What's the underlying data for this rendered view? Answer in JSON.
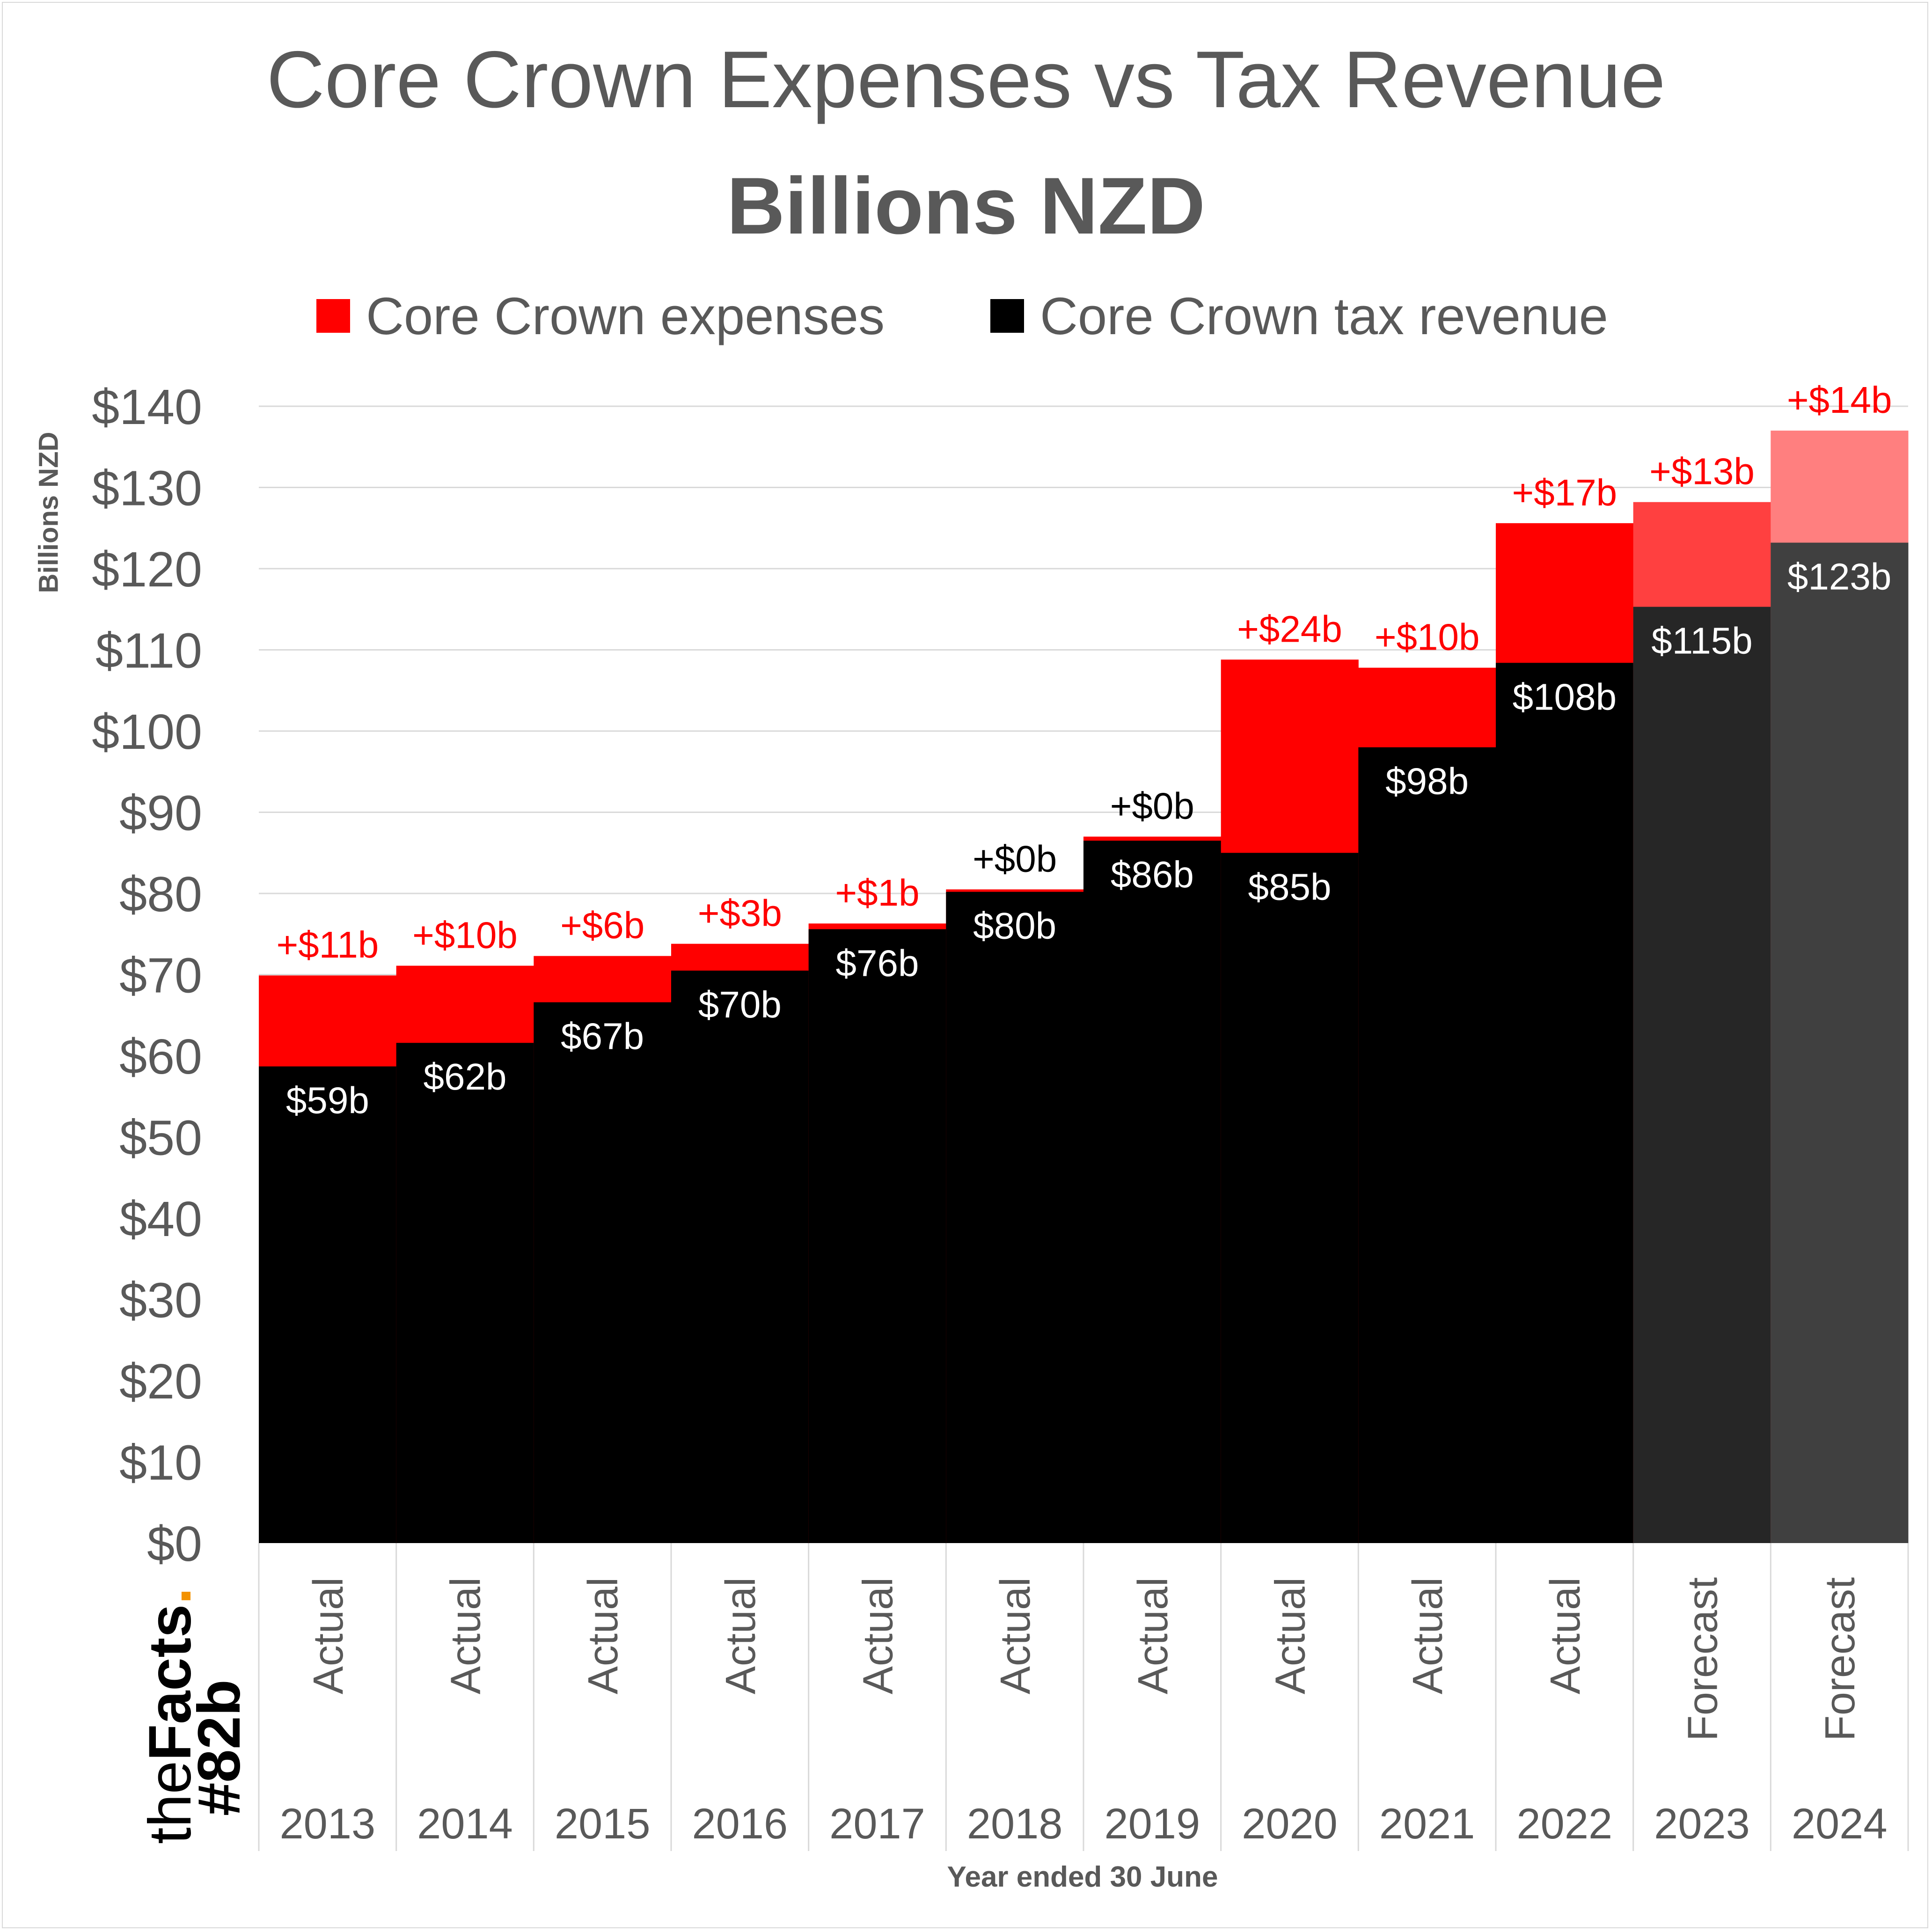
{
  "chart_data": {
    "type": "bar",
    "title": "Core Crown Expenses vs Tax Revenue",
    "subtitle": "Billions NZD",
    "ylabel": "Billions NZD",
    "xlabel": "Year ended 30 June",
    "ylim": [
      0,
      140
    ],
    "y_ticks": [
      0,
      10,
      20,
      30,
      40,
      50,
      60,
      70,
      80,
      90,
      100,
      110,
      120,
      130,
      140
    ],
    "y_tick_labels": [
      "$0",
      "$10",
      "$20",
      "$30",
      "$40",
      "$50",
      "$60",
      "$70",
      "$80",
      "$90",
      "$100",
      "$110",
      "$120",
      "$130",
      "$140"
    ],
    "grid": true,
    "legend_position": "top",
    "categories": [
      "2013",
      "2014",
      "2015",
      "2016",
      "2017",
      "2018",
      "2019",
      "2020",
      "2021",
      "2022",
      "2023",
      "2024"
    ],
    "status": [
      "Actual",
      "Actual",
      "Actual",
      "Actual",
      "Actual",
      "Actual",
      "Actual",
      "Actual",
      "Actual",
      "Actual",
      "Forecast",
      "Forecast"
    ],
    "series": [
      {
        "name": "Core Crown expenses",
        "color": "#ff0000",
        "values": [
          69.9,
          71.1,
          72.3,
          73.8,
          76.3,
          80.5,
          87.0,
          108.8,
          107.8,
          125.6,
          128.2,
          137.0
        ],
        "excess_over_tax_labels": [
          "+$11b",
          "+$10b",
          "+$6b",
          "+$3b",
          "+$1b",
          "+$0b",
          "+$0b",
          "+$24b",
          "+$10b",
          "+$17b",
          "+$13b",
          "+$14b"
        ]
      },
      {
        "name": "Core Crown tax revenue",
        "color": "#000000",
        "values": [
          58.7,
          61.6,
          66.6,
          70.5,
          75.6,
          80.2,
          86.5,
          85.0,
          98.0,
          108.4,
          115.3,
          123.2
        ],
        "data_labels": [
          "$59b",
          "$62b",
          "$67b",
          "$70b",
          "$76b",
          "$80b",
          "$86b",
          "$85b",
          "$98b",
          "$108b",
          "$115b",
          "$123b"
        ]
      }
    ],
    "label_colors": [
      "#ff0000",
      "#ff0000",
      "#ff0000",
      "#ff0000",
      "#ff0000",
      "#000000",
      "#000000",
      "#ff0000",
      "#ff0000",
      "#ff0000",
      "#ff0000",
      "#ff0000"
    ],
    "forecast_colors": {
      "expenses": [
        "#ff4040",
        "#ff7f7f"
      ],
      "tax": [
        "#262626",
        "#404040"
      ]
    }
  },
  "brand": {
    "the": "the",
    "facts": "Facts",
    "dot": ".",
    "tag": "#82b"
  }
}
